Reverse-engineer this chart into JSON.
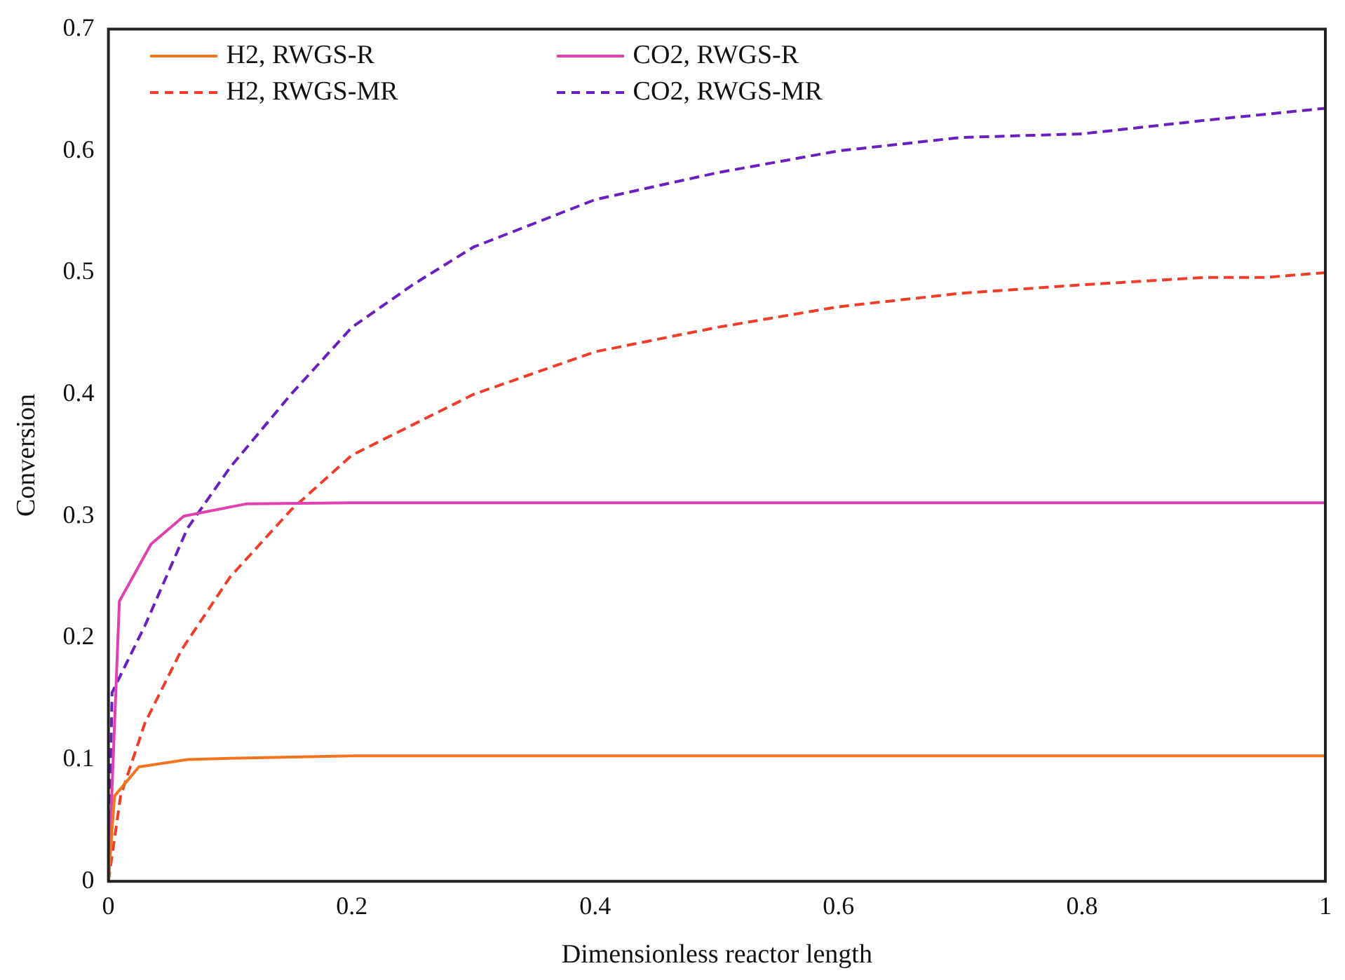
{
  "chart_data": {
    "type": "line",
    "xlabel": "Dimensionless reactor length",
    "ylabel": "Conversion",
    "xlim": [
      0,
      1
    ],
    "xticks": [
      0,
      0.2,
      0.4,
      0.6,
      0.8,
      1
    ],
    "ylim": [
      0,
      0.7
    ],
    "yticks": [
      0,
      0.1,
      0.2,
      0.3,
      0.4,
      0.5,
      0.6,
      0.7
    ],
    "grid": false,
    "legend": "top left",
    "marker": "none",
    "series": [
      {
        "name": "H2, RWGS-R",
        "color": "#f47321",
        "line_style": "solid",
        "x": [
          0,
          0.005,
          0.025,
          0.065,
          0.1,
          0.2,
          0.4,
          0.6,
          0.8,
          1
        ],
        "values": [
          0,
          0.07,
          0.094,
          0.1,
          0.101,
          0.103,
          0.103,
          0.103,
          0.103,
          0.103
        ]
      },
      {
        "name": "CO2, RWGS-R",
        "color": "#e040b0",
        "line_style": "solid",
        "x": [
          0,
          0.009,
          0.035,
          0.062,
          0.113,
          0.2,
          0.4,
          0.6,
          0.8,
          1
        ],
        "values": [
          0,
          0.23,
          0.277,
          0.3,
          0.31,
          0.311,
          0.311,
          0.311,
          0.311,
          0.311
        ]
      },
      {
        "name": "H2, RWGS-MR",
        "color": "#f03c28",
        "line_style": "dashed",
        "x": [
          0,
          0.01,
          0.03,
          0.06,
          0.1,
          0.15,
          0.2,
          0.3,
          0.4,
          0.5,
          0.6,
          0.7,
          0.8,
          0.9,
          0.95,
          1
        ],
        "values": [
          0,
          0.07,
          0.13,
          0.19,
          0.25,
          0.305,
          0.35,
          0.4,
          0.435,
          0.455,
          0.472,
          0.483,
          0.49,
          0.496,
          0.496,
          0.5
        ]
      },
      {
        "name": "CO2, RWGS-MR",
        "color": "#6a1fc0",
        "line_style": "dashed",
        "x": [
          0,
          0.003,
          0.03,
          0.065,
          0.1,
          0.15,
          0.2,
          0.25,
          0.3,
          0.4,
          0.5,
          0.6,
          0.7,
          0.8,
          0.9,
          1
        ],
        "values": [
          0,
          0.155,
          0.21,
          0.29,
          0.34,
          0.4,
          0.455,
          0.49,
          0.521,
          0.56,
          0.582,
          0.6,
          0.611,
          0.614,
          0.625,
          0.635
        ]
      }
    ]
  }
}
